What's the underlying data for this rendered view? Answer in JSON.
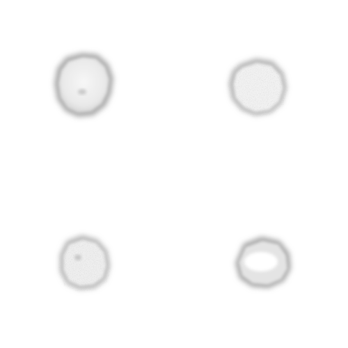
{
  "image": {
    "background_color": "#ffffff",
    "blob_fill_color": "#f2f2f2",
    "blob_edge_color": "#9a9a9a",
    "blob_count": 4
  }
}
